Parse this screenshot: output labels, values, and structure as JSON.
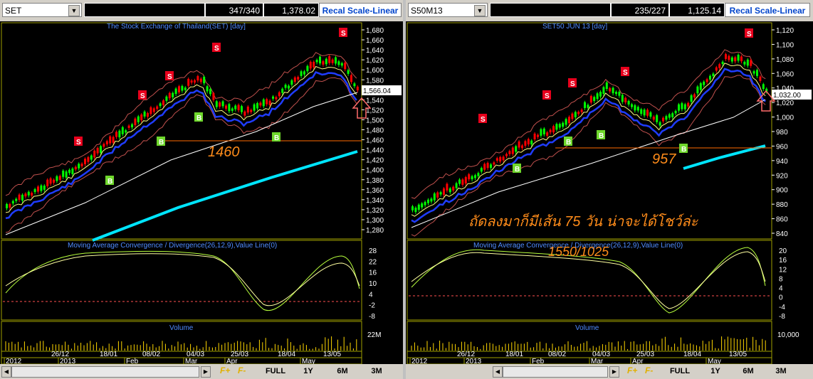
{
  "left": {
    "symbol": "SET",
    "count": "347/340",
    "last": "1,378.02",
    "recal": "Recal Scale-Linear",
    "chart_title": "The Stock Exchange of Thailand(SET) [day]",
    "price_ticks": [
      "1,680",
      "1,660",
      "1,640",
      "1,620",
      "1,600",
      "1,580",
      "1,560",
      "1,540",
      "1,520",
      "1,500",
      "1,480",
      "1,460",
      "1,440",
      "1,420",
      "1,400",
      "1,380",
      "1,360",
      "1,340",
      "1,320",
      "1,300",
      "1,280"
    ],
    "price_marker": "1,566.04",
    "annot_level": "1460",
    "macd_title": "Moving Average Convergence / Divergence(26,12,9),Value Line(0)",
    "macd_ticks": [
      "28",
      "22",
      "16",
      "10",
      "4",
      "-2",
      "-8"
    ],
    "vol_title": "Volume",
    "vol_tick": "22M",
    "date_ticks": [
      "26/12",
      "18/01",
      "08/02",
      "04/03",
      "25/03",
      "18/04",
      "13/05"
    ],
    "month_ticks": [
      "2012",
      "2013",
      "Feb",
      "Mar",
      "Apr",
      "May"
    ]
  },
  "right": {
    "symbol": "S50M13",
    "count": "235/227",
    "last": "1,125.14",
    "recal": "Recal Scale-Linear",
    "chart_title": "SET50 JUN 13 [day]",
    "price_ticks": [
      "1,120",
      "1,100",
      "1,080",
      "1,060",
      "1,040",
      "1,020",
      "1,000",
      "980",
      "960",
      "940",
      "920",
      "900",
      "880",
      "860",
      "840"
    ],
    "price_marker": "1,032.00",
    "annot_level": "957",
    "annot_thai": "ถัดลงมาก็มีเส้น 75 วัน น่าจะได้โชว์ล่ะ",
    "annot_macd": "1550/1025",
    "macd_title": "Moving Average Convergence / Divergence(26,12,9),Value Line(0)",
    "macd_ticks": [
      "20",
      "16",
      "12",
      "8",
      "4",
      "0",
      "-4",
      "-8"
    ],
    "vol_title": "Volume",
    "vol_tick": "10,000",
    "date_ticks": [
      "26/12",
      "18/01",
      "08/02",
      "04/03",
      "25/03",
      "18/04",
      "13/05"
    ],
    "month_ticks": [
      "2012",
      "2013",
      "Feb",
      "Mar",
      "Apr",
      "May"
    ]
  },
  "toolbar": {
    "fplus": "F+",
    "fminus": "F-",
    "full": "FULL",
    "y1": "1Y",
    "m6": "6M",
    "m3": "3M"
  },
  "signal_labels": {
    "sell": "S",
    "buy": "B"
  },
  "colors": {
    "bg": "#000000",
    "grid": "#7a7a00",
    "bull": "#00ff00",
    "bear": "#ff0000",
    "ma_blue": "#1f3cff",
    "bb": "#c0504d",
    "white_ma": "#ffffff",
    "cyan_ma": "#00e5ff",
    "title": "#4f8bff",
    "annot": "#ff8c1a"
  }
}
